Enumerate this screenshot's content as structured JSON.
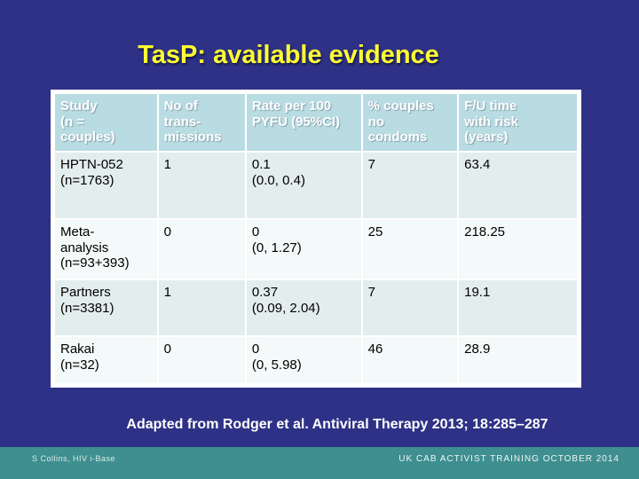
{
  "slide": {
    "title": "TasP: available evidence",
    "citation": "Adapted from Rodger et al. Antiviral Therapy 2013; 18:285–287",
    "footer_left": "S Collins, HIV i-Base",
    "footer_right": "UK CAB ACTIVIST TRAINING OCTOBER 2014"
  },
  "colors": {
    "background": "#2e3186",
    "title_text": "#ffff33",
    "table_header_bg": "#b9dce3",
    "table_header_text": "#ffffff",
    "row_odd_bg": "#e2edee",
    "row_even_bg": "#f4f9f9",
    "table_gridline": "#ffffff",
    "citation_text": "#ffffff",
    "footer_bar_bg": "#3f8e90",
    "footer_text": "#eef7f4"
  },
  "table": {
    "headers": [
      "Study\n(n =\ncouples)",
      "No of\ntrans-\nmissions",
      "Rate per 100\nPYFU (95%CI)",
      "% couples\nno\ncondoms",
      "F/U time\nwith risk\n(years)"
    ],
    "rows": [
      {
        "cells": [
          "HPTN-052\n(n=1763)",
          "1",
          "0.1\n(0.0, 0.4)",
          "7",
          "63.4"
        ]
      },
      {
        "cells": [
          "Meta-\nanalysis\n(n=93+393)",
          "0",
          "0\n(0, 1.27)",
          "25",
          "218.25"
        ]
      },
      {
        "cells": [
          "Partners\n(n=3381)",
          "1",
          "0.37\n(0.09, 2.04)",
          "7",
          "19.1"
        ]
      },
      {
        "cells": [
          "Rakai\n(n=32)",
          "0",
          "0\n(0, 5.98)",
          "46",
          "28.9"
        ]
      }
    ]
  }
}
